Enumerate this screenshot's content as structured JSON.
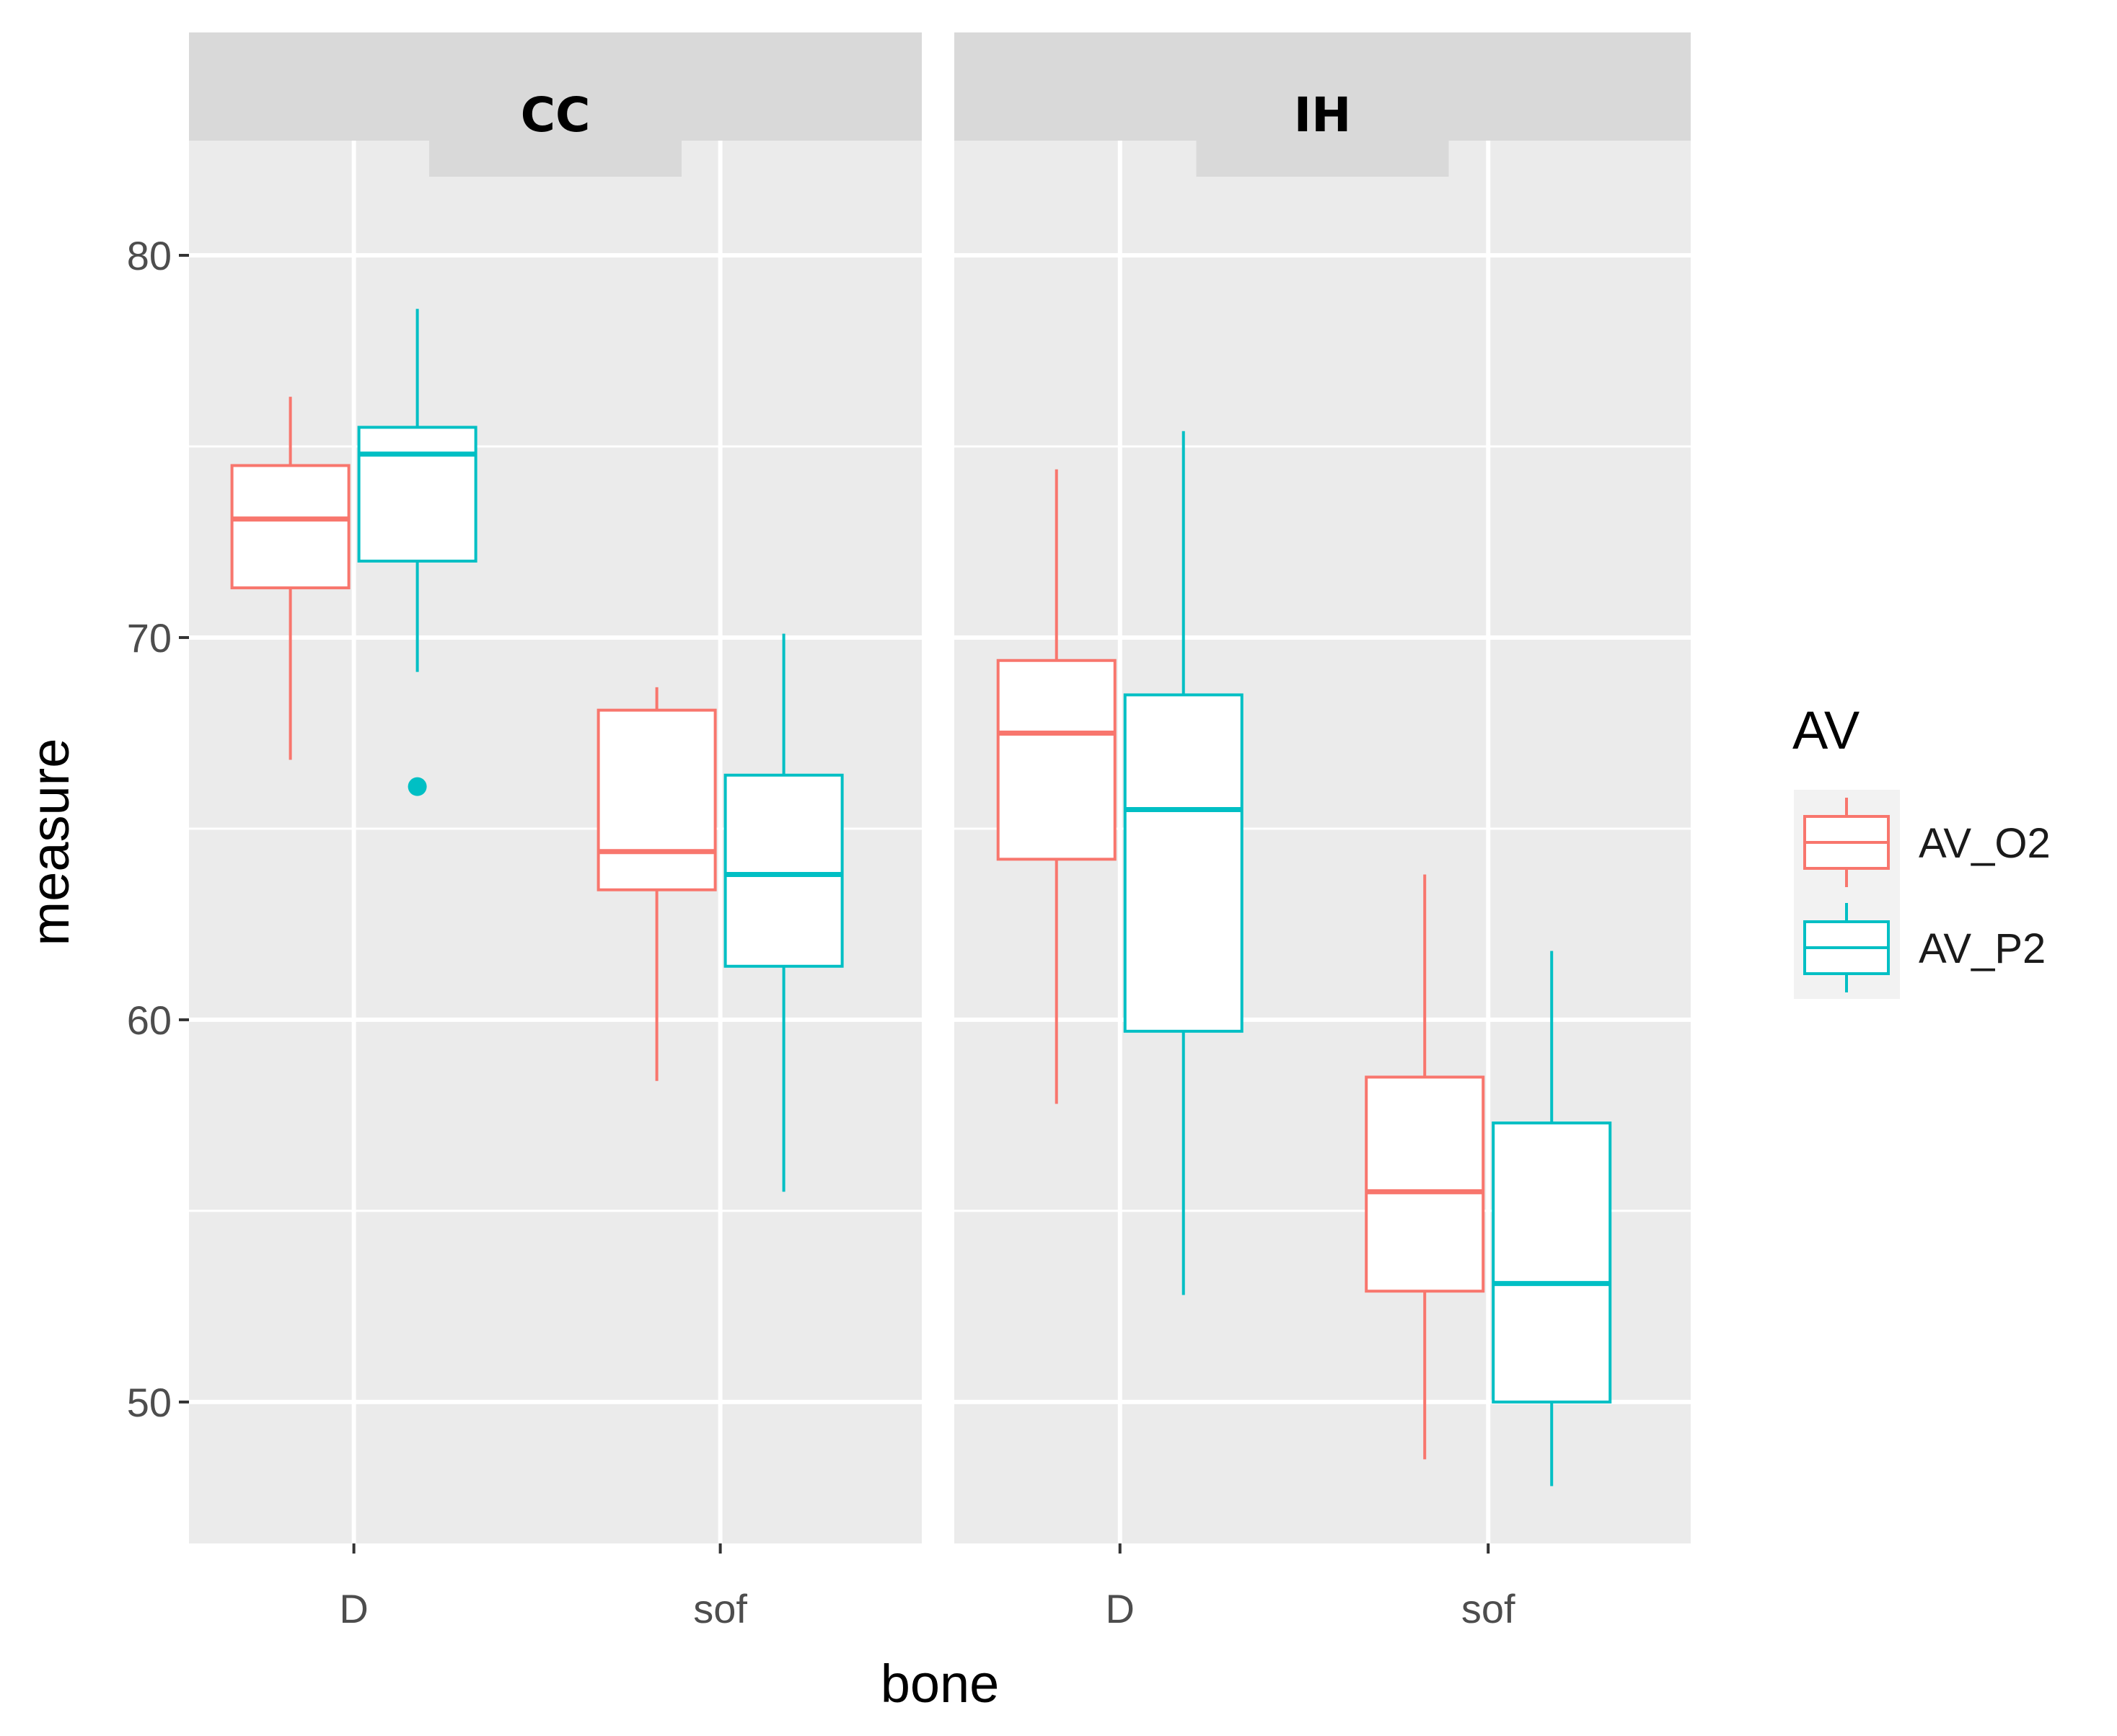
{
  "chart_data": {
    "type": "boxplot",
    "xlabel": "bone",
    "ylabel": "measure",
    "ylim": [
      46.3,
      83
    ],
    "y_ticks": [
      50,
      60,
      70,
      80
    ],
    "y_tick_labels": [
      "50",
      "60",
      "70",
      "80"
    ],
    "grid": true,
    "facets": [
      {
        "label": "CC",
        "categories": [
          "D",
          "sof"
        ]
      },
      {
        "label": "IH",
        "categories": [
          "D",
          "sof"
        ]
      }
    ],
    "legend": {
      "title": "AV",
      "position": "right",
      "entries": [
        {
          "label": "AV_O2",
          "color": "#F8766D"
        },
        {
          "label": "AV_P2",
          "color": "#00BFC4"
        }
      ]
    },
    "series": [
      {
        "name": "AV_O2",
        "color": "#F8766D",
        "boxes": [
          {
            "facet": "CC",
            "x": "D",
            "whisker_low": 66.8,
            "q1": 71.3,
            "median": 73.1,
            "q3": 74.5,
            "whisker_high": 76.3,
            "outliers": []
          },
          {
            "facet": "CC",
            "x": "sof",
            "whisker_low": 58.4,
            "q1": 63.4,
            "median": 64.4,
            "q3": 68.1,
            "whisker_high": 68.7,
            "outliers": []
          },
          {
            "facet": "IH",
            "x": "D",
            "whisker_low": 57.8,
            "q1": 64.2,
            "median": 67.5,
            "q3": 69.4,
            "whisker_high": 74.4,
            "outliers": []
          },
          {
            "facet": "IH",
            "x": "sof",
            "whisker_low": 48.5,
            "q1": 52.9,
            "median": 55.5,
            "q3": 58.5,
            "whisker_high": 63.8,
            "outliers": []
          }
        ]
      },
      {
        "name": "AV_P2",
        "color": "#00BFC4",
        "boxes": [
          {
            "facet": "CC",
            "x": "D",
            "whisker_low": 69.1,
            "q1": 72.0,
            "median": 74.8,
            "q3": 75.5,
            "whisker_high": 78.6,
            "outliers": [
              66.1
            ]
          },
          {
            "facet": "CC",
            "x": "sof",
            "whisker_low": 55.5,
            "q1": 61.4,
            "median": 63.8,
            "q3": 66.4,
            "whisker_high": 70.1,
            "outliers": []
          },
          {
            "facet": "IH",
            "x": "D",
            "whisker_low": 52.8,
            "q1": 59.7,
            "median": 65.5,
            "q3": 68.5,
            "whisker_high": 75.4,
            "outliers": []
          },
          {
            "facet": "IH",
            "x": "sof",
            "whisker_low": 47.8,
            "q1": 50.0,
            "median": 53.1,
            "q3": 57.3,
            "whisker_high": 61.8,
            "outliers": []
          }
        ]
      }
    ]
  }
}
